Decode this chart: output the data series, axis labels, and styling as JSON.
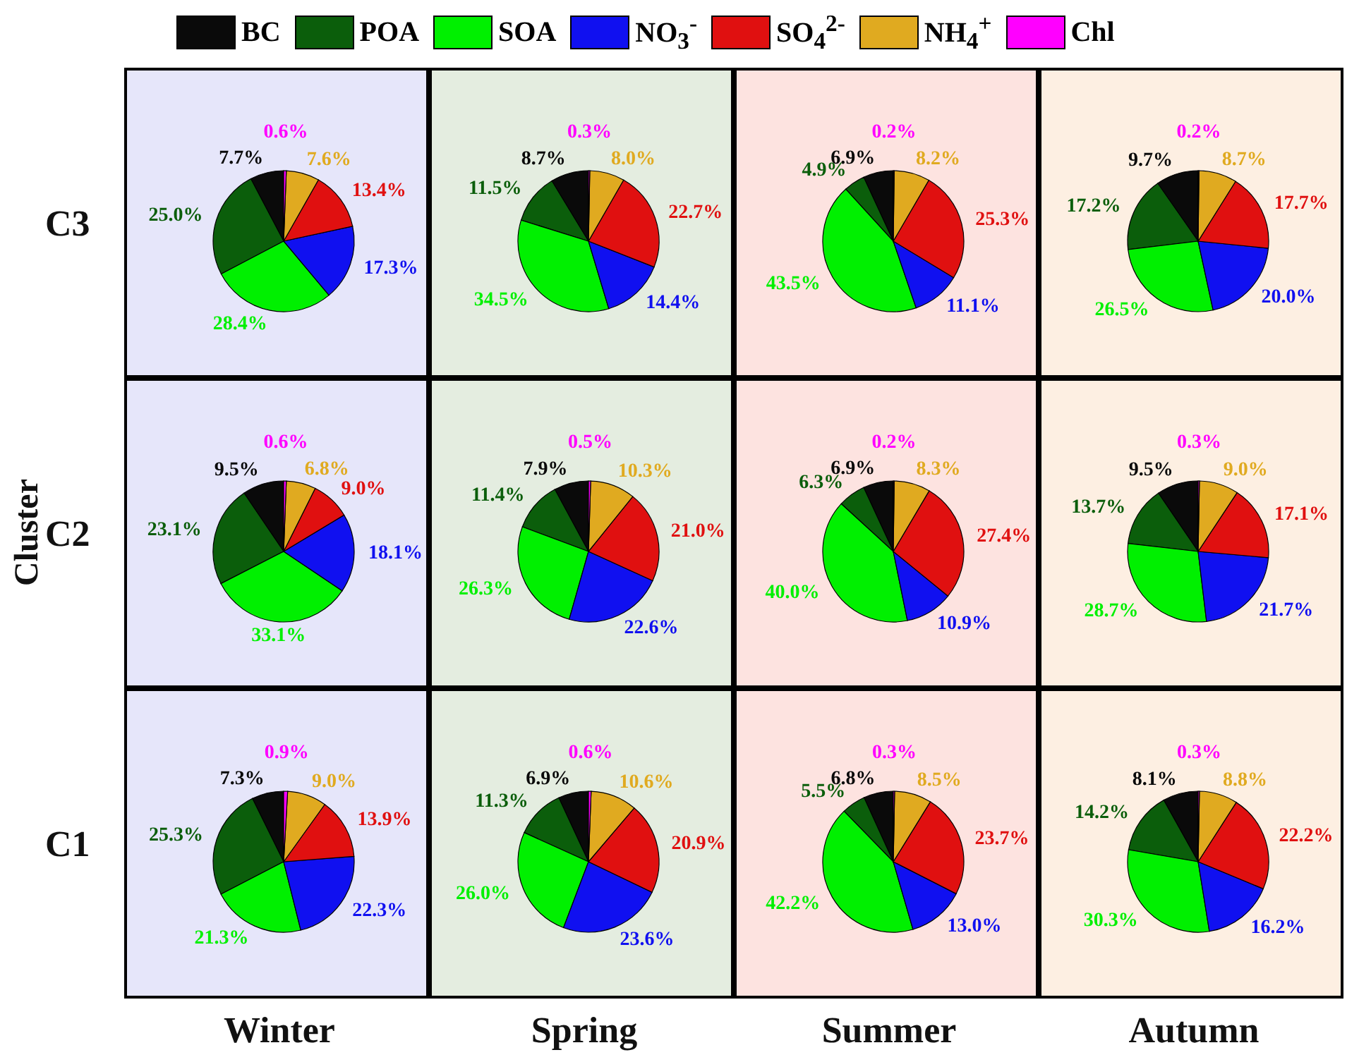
{
  "chart_data": [
    {
      "type": "pie",
      "legend": "top",
      "ylabel": "C3",
      "categories": [
        "BC",
        "POA",
        "SOA",
        "NO$_{3}$$^{-}$",
        "SO$_{4}$$^{2-}$",
        "NH$_{4}$$^{+}$",
        "Chl"
      ],
      "colors": [
        "#0a0a0a",
        "#0b5e0b",
        "#00f000",
        "#1010f0",
        "#e01010",
        "#e0aa20",
        "#ff00ff"
      ],
      "values": [
        7.7,
        25.0,
        28.4,
        17.3,
        13.4,
        7.6,
        0.6
      ],
      "value_labels": [
        "7.7%",
        "25.0%",
        "28.4%",
        "17.3%",
        "13.4%",
        "7.6%",
        "0.6%"
      ]
    },
    {
      "type": "pie",
      "colors": [
        "#0a0a0a",
        "#0b5e0b",
        "#00f000",
        "#1010f0",
        "#e01010",
        "#e0aa20",
        "#ff00ff"
      ],
      "values": [
        8.7,
        11.5,
        34.5,
        14.4,
        22.7,
        8.0,
        0.3
      ],
      "value_labels": [
        "8.7%",
        "11.5%",
        "34.5%",
        "14.4%",
        "22.7%",
        "8.0%",
        "0.3%"
      ]
    },
    {
      "type": "pie",
      "colors": [
        "#0a0a0a",
        "#0b5e0b",
        "#00f000",
        "#1010f0",
        "#e01010",
        "#e0aa20",
        "#ff00ff"
      ],
      "values": [
        6.9,
        4.9,
        43.5,
        11.1,
        25.3,
        8.2,
        0.2
      ],
      "value_labels": [
        "6.9%",
        "4.9%",
        "43.5%",
        "11.1%",
        "25.3%",
        "8.2%",
        "0.2%"
      ]
    },
    {
      "type": "pie",
      "colors": [
        "#0a0a0a",
        "#0b5e0b",
        "#00f000",
        "#1010f0",
        "#e01010",
        "#e0aa20",
        "#ff00ff"
      ],
      "values": [
        9.7,
        17.2,
        26.5,
        20.0,
        17.7,
        8.7,
        0.2
      ],
      "value_labels": [
        "9.7%",
        "17.2%",
        "26.5%",
        "20.0%",
        "17.7%",
        "8.7%",
        "0.2%"
      ]
    },
    {
      "type": "pie",
      "ylabel": "C2",
      "annotations": [
        "Cluster"
      ],
      "colors": [
        "#0a0a0a",
        "#0b5e0b",
        "#00f000",
        "#1010f0",
        "#e01010",
        "#e0aa20",
        "#ff00ff"
      ],
      "values": [
        9.5,
        23.1,
        33.1,
        18.1,
        9.0,
        6.8,
        0.6
      ],
      "value_labels": [
        "9.5%",
        "23.1%",
        "33.1%",
        "18.1%",
        "9.0%",
        "6.8%",
        "0.6%"
      ]
    },
    {
      "type": "pie",
      "colors": [
        "#0a0a0a",
        "#0b5e0b",
        "#00f000",
        "#1010f0",
        "#e01010",
        "#e0aa20",
        "#ff00ff"
      ],
      "values": [
        7.9,
        11.4,
        26.3,
        22.6,
        21.0,
        10.3,
        0.5
      ],
      "value_labels": [
        "7.9%",
        "11.4%",
        "26.3%",
        "22.6%",
        "21.0%",
        "10.3%",
        "0.5%"
      ]
    },
    {
      "type": "pie",
      "colors": [
        "#0a0a0a",
        "#0b5e0b",
        "#00f000",
        "#1010f0",
        "#e01010",
        "#e0aa20",
        "#ff00ff"
      ],
      "values": [
        6.9,
        6.3,
        40.0,
        10.9,
        27.4,
        8.3,
        0.2
      ],
      "value_labels": [
        "6.9%",
        "6.3%",
        "40.0%",
        "10.9%",
        "27.4%",
        "8.3%",
        "0.2%"
      ]
    },
    {
      "type": "pie",
      "colors": [
        "#0a0a0a",
        "#0b5e0b",
        "#00f000",
        "#1010f0",
        "#e01010",
        "#e0aa20",
        "#ff00ff"
      ],
      "values": [
        9.5,
        13.7,
        28.7,
        21.7,
        17.1,
        9.0,
        0.3
      ],
      "value_labels": [
        "9.5%",
        "13.7%",
        "28.7%",
        "21.7%",
        "17.1%",
        "9.0%",
        "0.3%"
      ]
    },
    {
      "type": "pie",
      "ylabel": "C1",
      "xlabel": "Winter",
      "colors": [
        "#0a0a0a",
        "#0b5e0b",
        "#00f000",
        "#1010f0",
        "#e01010",
        "#e0aa20",
        "#ff00ff"
      ],
      "values": [
        7.3,
        25.3,
        21.3,
        22.3,
        13.9,
        9.0,
        0.9
      ],
      "value_labels": [
        "7.3%",
        "25.3%",
        "21.3%",
        "22.3%",
        "13.9%",
        "9.0%",
        "0.9%"
      ]
    },
    {
      "type": "pie",
      "xlabel": "Spring",
      "colors": [
        "#0a0a0a",
        "#0b5e0b",
        "#00f000",
        "#1010f0",
        "#e01010",
        "#e0aa20",
        "#ff00ff"
      ],
      "values": [
        6.9,
        11.3,
        26.0,
        23.6,
        20.9,
        10.6,
        0.6
      ],
      "value_labels": [
        "6.9%",
        "11.3%",
        "26.0%",
        "23.6%",
        "20.9%",
        "10.6%",
        "0.6%"
      ]
    },
    {
      "type": "pie",
      "xlabel": "Summer",
      "colors": [
        "#0a0a0a",
        "#0b5e0b",
        "#00f000",
        "#1010f0",
        "#e01010",
        "#e0aa20",
        "#ff00ff"
      ],
      "values": [
        6.8,
        5.5,
        42.2,
        13.0,
        23.7,
        8.5,
        0.3
      ],
      "value_labels": [
        "6.8%",
        "5.5%",
        "42.2%",
        "13.0%",
        "23.7%",
        "8.5%",
        "0.3%"
      ]
    },
    {
      "type": "pie",
      "xlabel": "Autumn",
      "colors": [
        "#0a0a0a",
        "#0b5e0b",
        "#00f000",
        "#1010f0",
        "#e01010",
        "#e0aa20",
        "#ff00ff"
      ],
      "values": [
        8.1,
        14.2,
        30.3,
        16.2,
        22.2,
        8.8,
        0.3
      ],
      "value_labels": [
        "8.1%",
        "14.2%",
        "30.3%",
        "16.2%",
        "22.2%",
        "8.8%",
        "0.3%"
      ]
    }
  ]
}
